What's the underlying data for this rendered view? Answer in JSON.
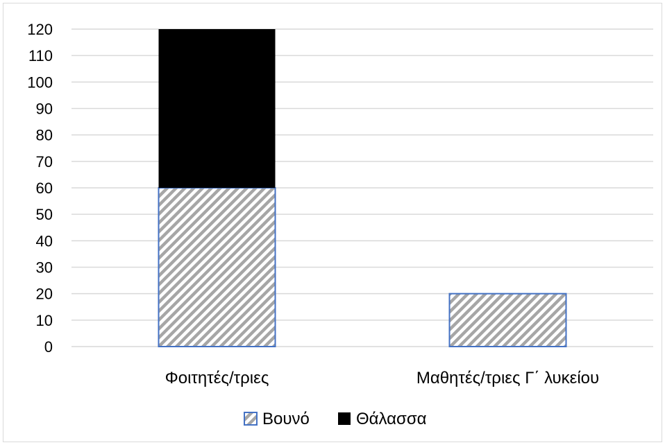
{
  "chart_data": {
    "type": "bar",
    "stacked": true,
    "categories": [
      "Φοιτητές/τριες",
      "Μαθητές/τριες Γ΄ λυκείου"
    ],
    "series": [
      {
        "name": "Βουνό",
        "values": [
          60,
          20
        ],
        "pattern": "hatch",
        "color": "#a6a6a6",
        "border": "#4472c4"
      },
      {
        "name": "Θάλασσα",
        "values": [
          60,
          0
        ],
        "pattern": "solid",
        "color": "#000000"
      }
    ],
    "y_ticks": [
      "0",
      "10",
      "20",
      "30",
      "40",
      "50",
      "60",
      "70",
      "80",
      "90",
      "100",
      "110",
      "120"
    ],
    "ylim": [
      0,
      120
    ],
    "grid": true,
    "legend_position": "bottom",
    "gridline_color": "#d9d9d9"
  }
}
